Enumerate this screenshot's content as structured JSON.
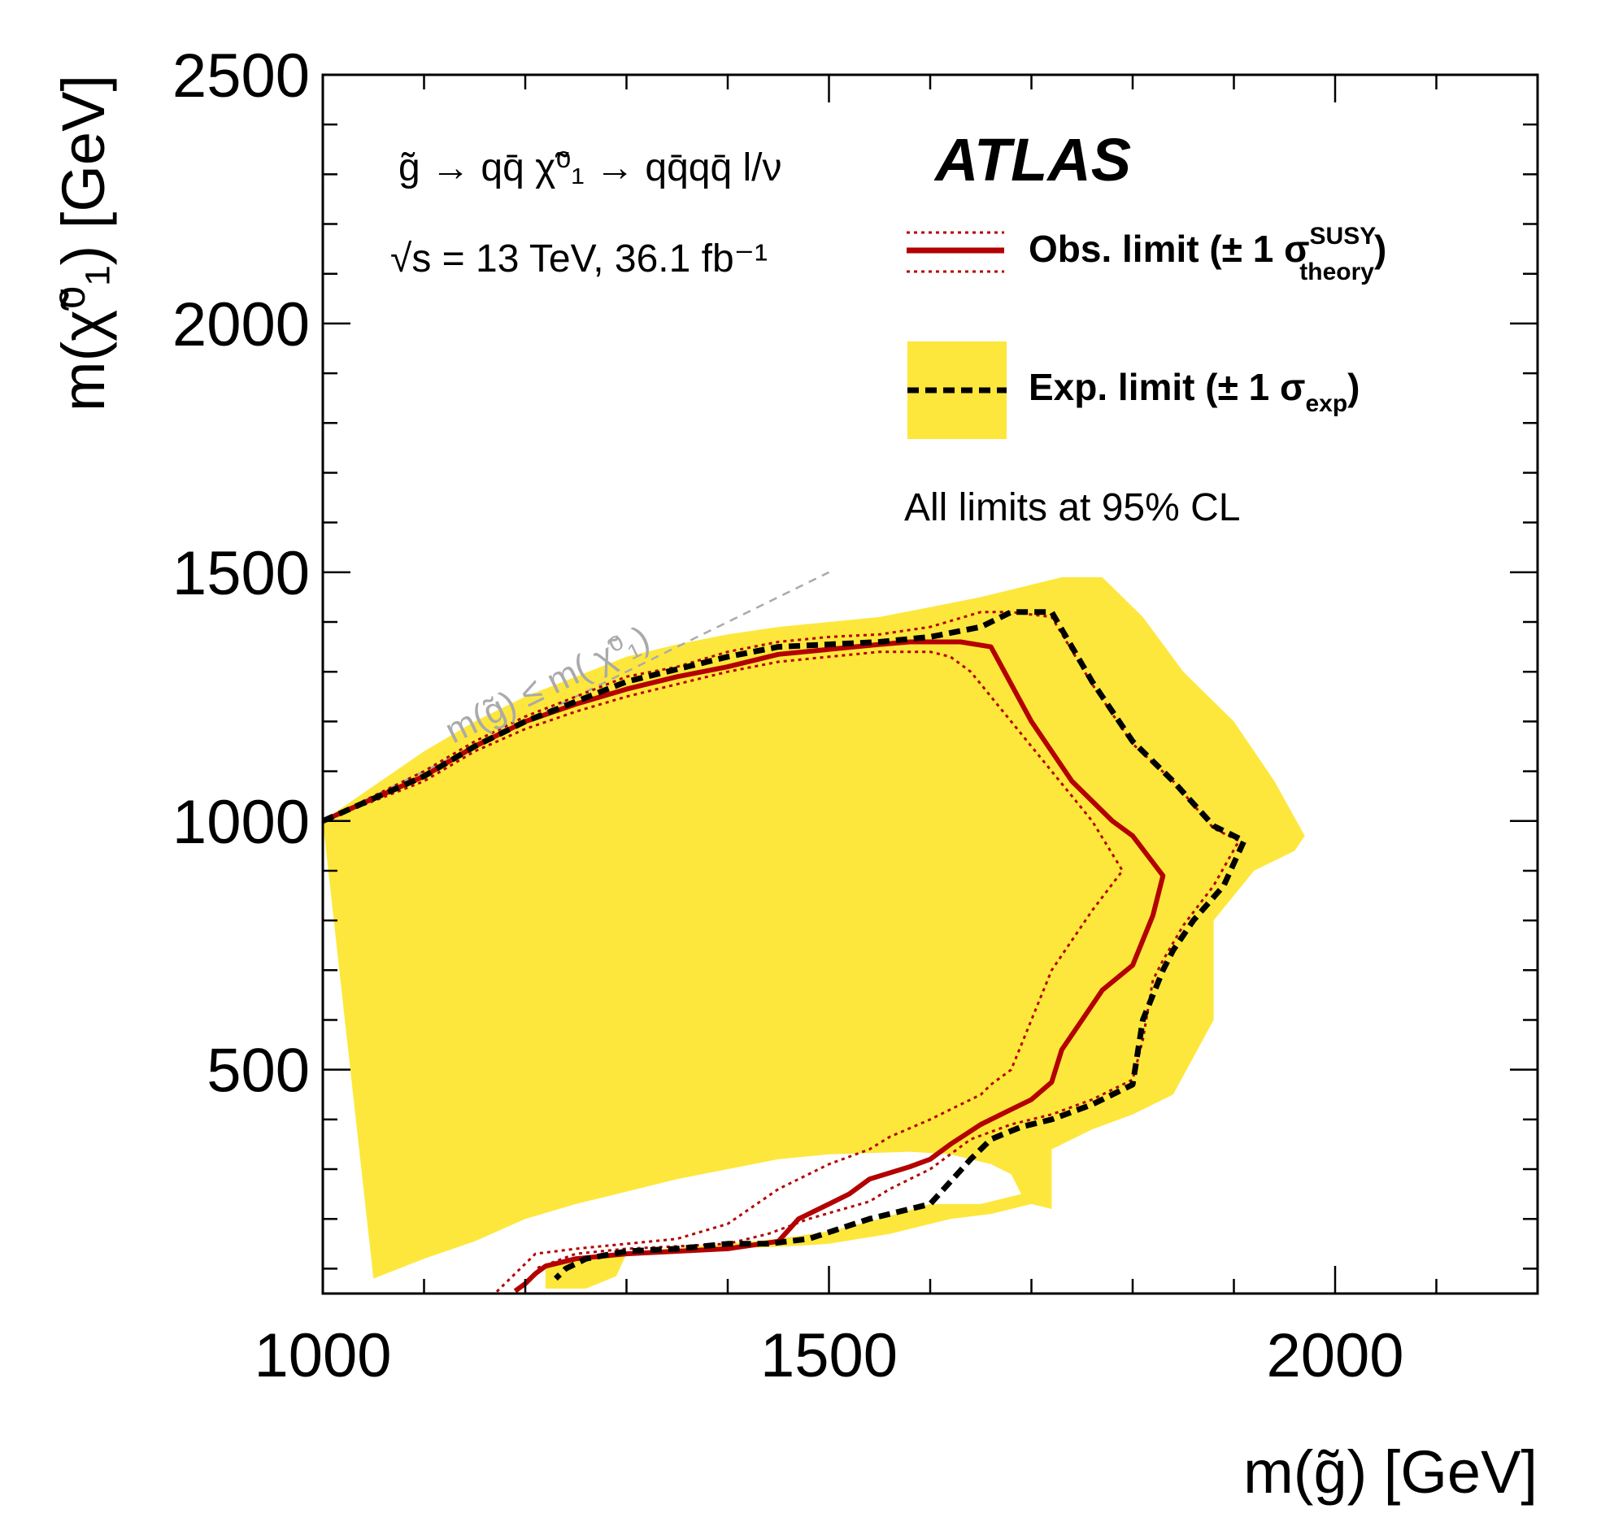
{
  "chart_data": {
    "type": "line",
    "title": "",
    "xlabel": "m(g̃) [GeV]",
    "ylabel": "m(χ̃⁰₁) [GeV]",
    "xlim": [
      1000,
      2200
    ],
    "ylim": [
      50,
      2500
    ],
    "x_ticks": [
      1000,
      1500,
      2000
    ],
    "y_ticks": [
      500,
      1000,
      1500,
      2000,
      2500
    ],
    "x_tick_labels": [
      "1000",
      "1500",
      "2000"
    ],
    "y_tick_labels": [
      "500",
      "1000",
      "1500",
      "2000",
      "2500"
    ],
    "grid": false,
    "experiment": "ATLAS",
    "process": "g̃ → qq̄ χ̃⁰₁ → qq̄qq̄ l/ν",
    "energy_lumi": "√s = 13 TeV, 36.1 fb⁻¹",
    "cl_note": "All limits at 95% CL",
    "diagonal_label": "m(g̃) ≤ m( χ̃⁰₁)",
    "diagonal_line": {
      "x": [
        1000,
        1500
      ],
      "y": [
        1000,
        1500
      ]
    },
    "legend": [
      {
        "label": "Obs. limit (± 1 σ",
        "sup": "SUSY",
        "sub": "theory",
        "close": ")"
      },
      {
        "label": "Exp. limit (± 1 σ",
        "sub": "exp",
        "close": ")"
      }
    ],
    "colors": {
      "observed": "#b30000",
      "expected": "#000000",
      "band": "#fde73c",
      "diagonal": "#aaaaaa"
    },
    "series": [
      {
        "name": "Exp. limit ±1σ band",
        "style": "band",
        "x": [
          1000,
          1050,
          1100,
          1150,
          1200,
          1250,
          1300,
          1350,
          1400,
          1450,
          1500,
          1550,
          1600,
          1650,
          1690,
          1730,
          1770,
          1810,
          1850,
          1900,
          1940,
          1970,
          1960,
          1920,
          1880,
          1880,
          1840,
          1800,
          1760,
          1720,
          1720,
          1700,
          1660,
          1620,
          1560,
          1500,
          1460,
          1400,
          1360,
          1300,
          1290,
          1260,
          1220,
          1220,
          1230,
          1280,
          1340,
          1400,
          1450,
          1500,
          1550,
          1600,
          1650,
          1690,
          1680,
          1660,
          1620,
          1580,
          1500,
          1450,
          1400,
          1350,
          1300,
          1250,
          1200,
          1150,
          1100,
          1050,
          1000
        ],
        "y": [
          1000,
          1070,
          1140,
          1200,
          1250,
          1290,
          1330,
          1355,
          1375,
          1390,
          1400,
          1410,
          1430,
          1450,
          1470,
          1490,
          1490,
          1410,
          1300,
          1200,
          1080,
          970,
          940,
          900,
          800,
          600,
          450,
          410,
          380,
          340,
          220,
          230,
          210,
          200,
          170,
          150,
          145,
          140,
          135,
          130,
          85,
          60,
          60,
          110,
          115,
          125,
          140,
          150,
          160,
          175,
          200,
          230,
          230,
          250,
          290,
          310,
          330,
          335,
          330,
          320,
          300,
          280,
          255,
          230,
          200,
          155,
          120,
          80,
          1000
        ]
      },
      {
        "name": "Exp. limit",
        "style": "dashed",
        "x": [
          1000,
          1100,
          1150,
          1200,
          1250,
          1300,
          1350,
          1400,
          1450,
          1500,
          1550,
          1600,
          1650,
          1680,
          1720,
          1760,
          1800,
          1840,
          1880,
          1910,
          1890,
          1860,
          1840,
          1830,
          1810,
          1800,
          1760,
          1720,
          1690,
          1660,
          1640,
          1600,
          1560,
          1540,
          1480,
          1440,
          1400,
          1350,
          1300,
          1260,
          1240,
          1230
        ],
        "y": [
          1000,
          1090,
          1150,
          1200,
          1240,
          1280,
          1305,
          1330,
          1350,
          1355,
          1360,
          1370,
          1390,
          1420,
          1420,
          1280,
          1160,
          1080,
          990,
          960,
          870,
          800,
          740,
          700,
          600,
          470,
          430,
          400,
          385,
          360,
          320,
          230,
          210,
          200,
          160,
          150,
          150,
          140,
          135,
          120,
          100,
          80
        ]
      },
      {
        "name": "Obs. limit",
        "style": "solid",
        "x": [
          1000,
          1100,
          1150,
          1200,
          1250,
          1300,
          1350,
          1400,
          1450,
          1500,
          1550,
          1580,
          1600,
          1630,
          1660,
          1700,
          1740,
          1780,
          1800,
          1830,
          1820,
          1800,
          1770,
          1750,
          1730,
          1720,
          1700,
          1680,
          1650,
          1620,
          1600,
          1580,
          1540,
          1520,
          1500,
          1470,
          1450,
          1400,
          1350,
          1300,
          1250,
          1220,
          1210,
          1200,
          1190
        ],
        "y": [
          1000,
          1090,
          1150,
          1200,
          1235,
          1265,
          1290,
          1310,
          1335,
          1345,
          1355,
          1360,
          1360,
          1360,
          1350,
          1200,
          1080,
          1000,
          970,
          890,
          810,
          710,
          660,
          600,
          540,
          475,
          440,
          420,
          390,
          350,
          320,
          305,
          280,
          250,
          230,
          200,
          155,
          140,
          135,
          130,
          120,
          105,
          90,
          70,
          55
        ]
      },
      {
        "name": "Obs. limit +1σ theory",
        "style": "dotted",
        "x": [
          1000,
          1100,
          1150,
          1200,
          1250,
          1300,
          1350,
          1400,
          1450,
          1500,
          1550,
          1600,
          1650,
          1680,
          1720,
          1760,
          1800,
          1840,
          1880,
          1905,
          1880,
          1850,
          1830,
          1820,
          1810,
          1800,
          1760,
          1720,
          1680,
          1640,
          1600,
          1560,
          1540,
          1480,
          1440,
          1400,
          1350,
          1300,
          1250,
          1210
        ],
        "y": [
          1000,
          1100,
          1160,
          1210,
          1250,
          1290,
          1310,
          1340,
          1360,
          1370,
          1375,
          1390,
          1420,
          1420,
          1410,
          1275,
          1155,
          1080,
          985,
          960,
          870,
          790,
          720,
          680,
          560,
          480,
          440,
          410,
          390,
          360,
          300,
          260,
          235,
          200,
          170,
          150,
          145,
          140,
          130,
          100
        ]
      },
      {
        "name": "Obs. limit −1σ theory",
        "style": "dotted",
        "x": [
          1000,
          1100,
          1150,
          1200,
          1250,
          1300,
          1350,
          1400,
          1450,
          1500,
          1550,
          1600,
          1620,
          1640,
          1680,
          1720,
          1760,
          1790,
          1760,
          1720,
          1700,
          1680,
          1660,
          1650,
          1620,
          1600,
          1560,
          1540,
          1500,
          1450,
          1400,
          1350,
          1300,
          1250,
          1210,
          1170
        ],
        "y": [
          1000,
          1080,
          1140,
          1185,
          1220,
          1250,
          1275,
          1300,
          1320,
          1330,
          1340,
          1340,
          1330,
          1300,
          1200,
          1100,
          1000,
          900,
          820,
          700,
          600,
          500,
          470,
          450,
          420,
          400,
          365,
          340,
          310,
          260,
          190,
          160,
          150,
          140,
          130,
          50
        ]
      }
    ]
  }
}
